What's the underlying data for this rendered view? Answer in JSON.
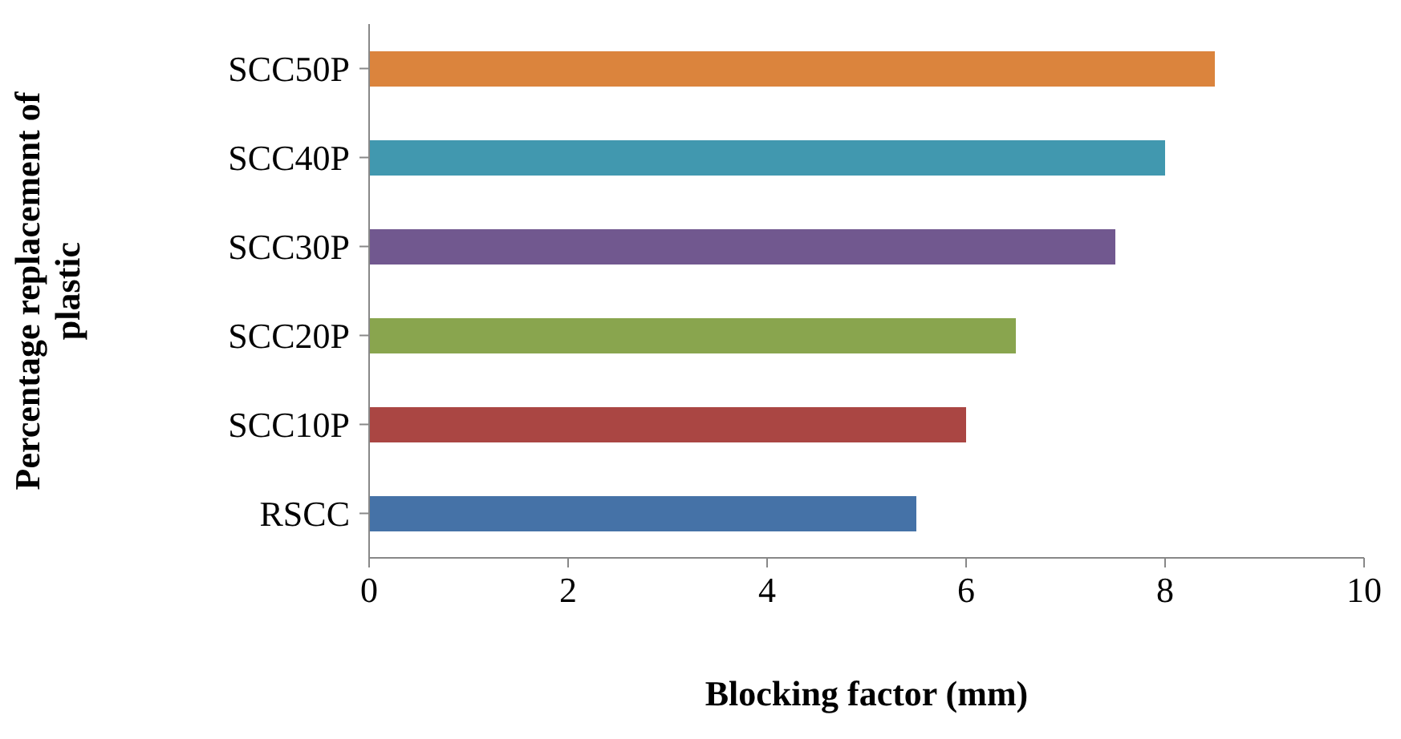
{
  "chart_data": {
    "type": "bar",
    "orientation": "horizontal",
    "xlabel": "Blocking factor (mm)",
    "ylabel": "Percentage replacement of plastic",
    "categories": [
      "SCC50P",
      "SCC40P",
      "SCC30P",
      "SCC20P",
      "SCC10P",
      "RSCC"
    ],
    "values": [
      8.5,
      8.0,
      7.5,
      6.5,
      6.0,
      5.5
    ],
    "colors": [
      "#db843d",
      "#4198af",
      "#71588f",
      "#89a54e",
      "#aa4643",
      "#4572a7"
    ],
    "xlim": [
      0,
      10
    ],
    "xticks": [
      0,
      2,
      4,
      6,
      8,
      10
    ],
    "grid": false
  }
}
